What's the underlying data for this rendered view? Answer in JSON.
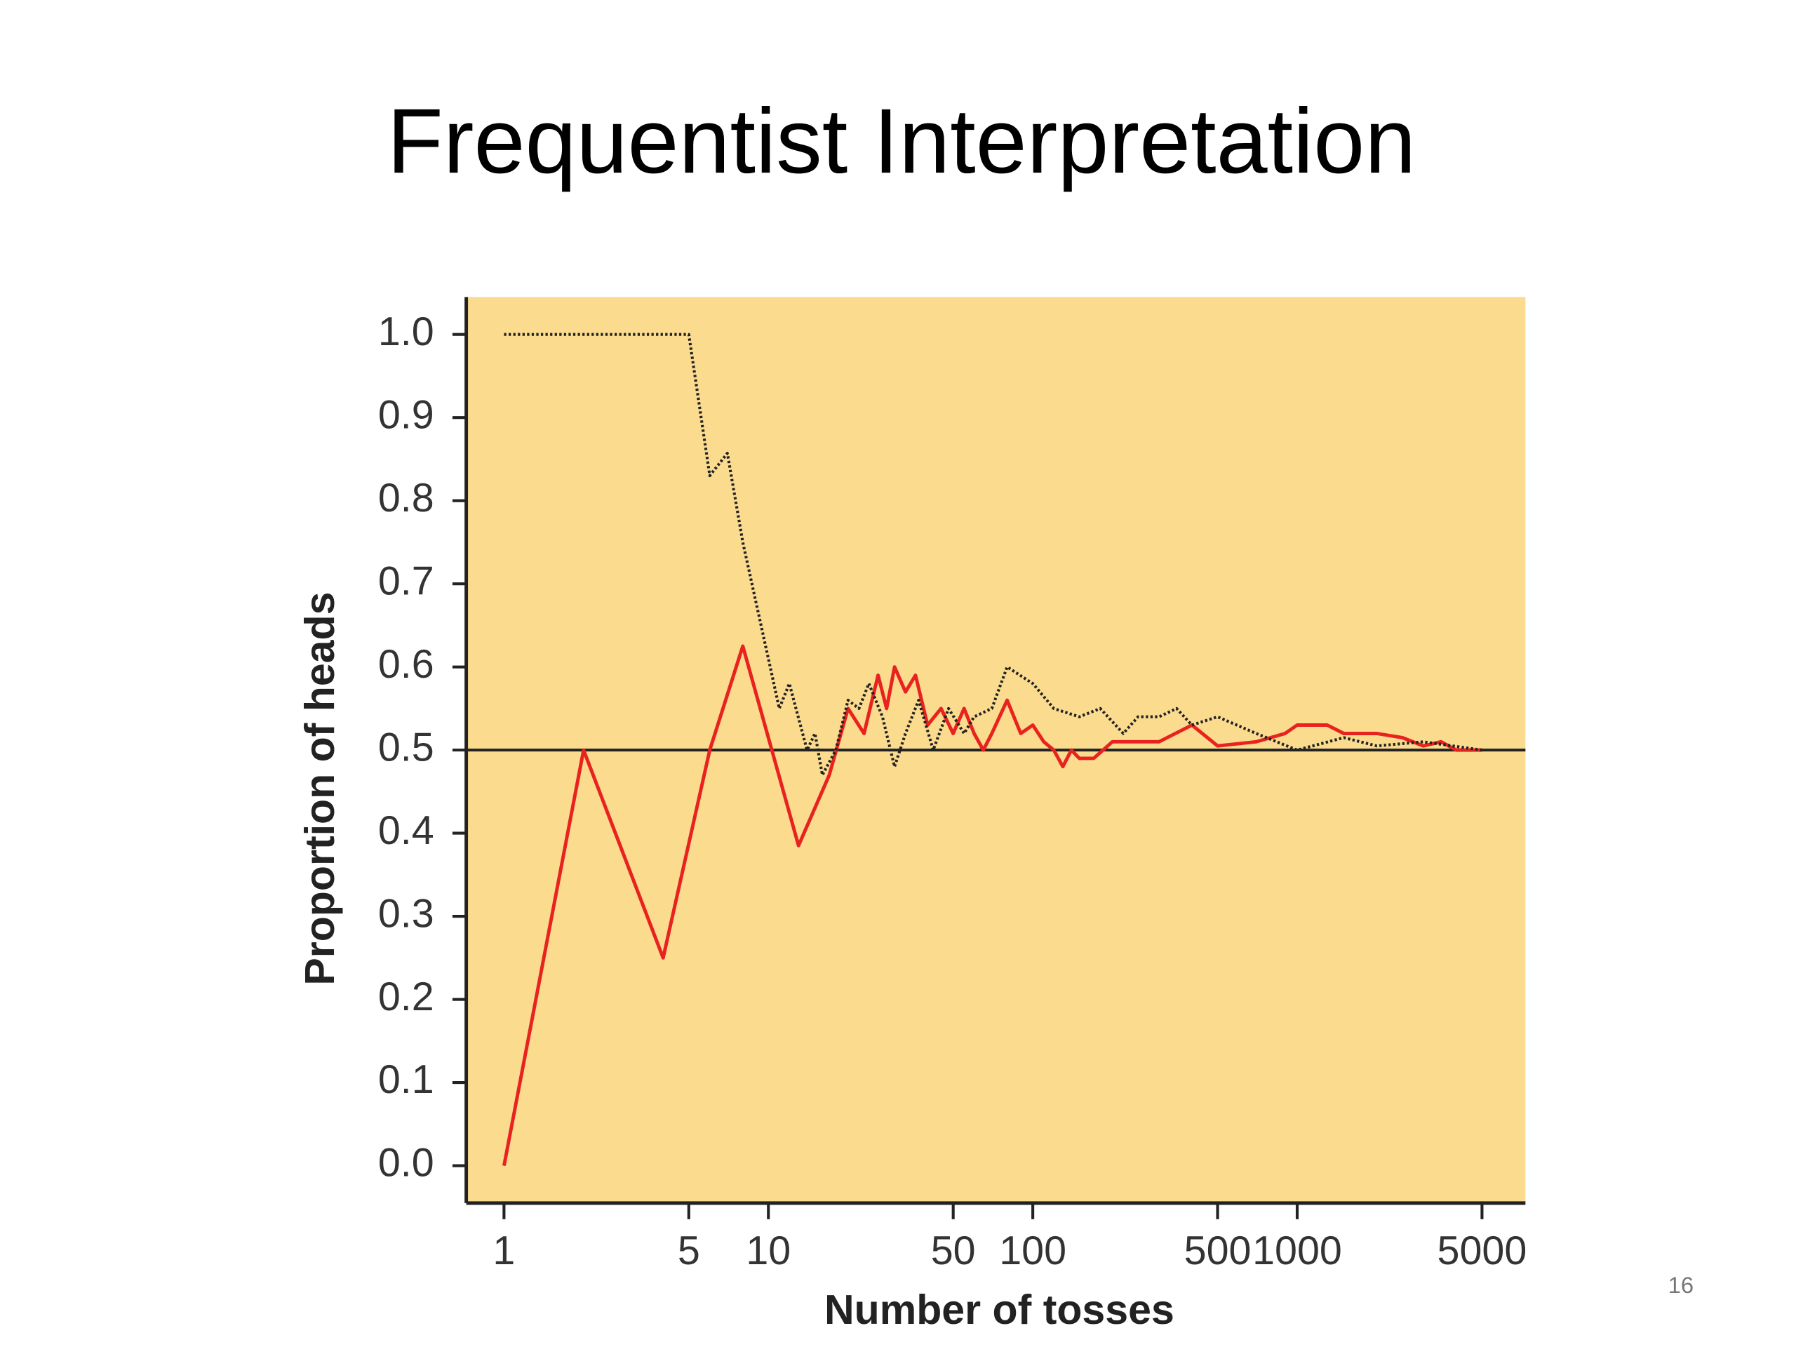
{
  "chart_data": {
    "type": "line",
    "title": "Frequentist Interpretation",
    "xlabel": "Number of tosses",
    "ylabel": "Proportion of  heads",
    "xscale": "log",
    "xlim": [
      0.72,
      7300
    ],
    "ylim": [
      -0.045,
      1.045
    ],
    "xticks": [
      1,
      5,
      10,
      50,
      100,
      500,
      1000,
      5000
    ],
    "yticks": [
      {
        "value": 0,
        "label": "0.0"
      },
      0.1,
      0.2,
      0.3,
      0.4,
      0.5,
      0.6,
      0.7,
      0.8,
      0.9,
      {
        "value": 1,
        "label": "1.0"
      }
    ],
    "hline": 0.5,
    "background": "#fbdb8e",
    "series": [
      {
        "color": "#e8231f",
        "style": "solid",
        "x": [
          1,
          2,
          4,
          6,
          8,
          13,
          17,
          20,
          23,
          26,
          28,
          30,
          33,
          36,
          40,
          45,
          50,
          55,
          60,
          65,
          70,
          80,
          90,
          100,
          110,
          120,
          130,
          140,
          150,
          170,
          200,
          300,
          400,
          500,
          700,
          900,
          1000,
          1300,
          1500,
          2000,
          2500,
          3000,
          3500,
          4000,
          5000
        ],
        "values": [
          0,
          0.5,
          0.25,
          0.5,
          0.625,
          0.385,
          0.47,
          0.55,
          0.52,
          0.59,
          0.55,
          0.6,
          0.57,
          0.59,
          0.53,
          0.55,
          0.52,
          0.55,
          0.52,
          0.5,
          0.52,
          0.56,
          0.52,
          0.53,
          0.51,
          0.5,
          0.48,
          0.5,
          0.49,
          0.49,
          0.51,
          0.51,
          0.53,
          0.505,
          0.51,
          0.52,
          0.53,
          0.53,
          0.52,
          0.52,
          0.515,
          0.505,
          0.51,
          0.5,
          0.5
        ]
      },
      {
        "color": "#222222",
        "style": "dotted",
        "x": [
          1,
          5,
          6,
          7,
          8,
          11,
          12,
          14,
          15,
          16,
          18,
          20,
          22,
          24,
          27,
          30,
          33,
          37,
          42,
          48,
          55,
          60,
          70,
          80,
          100,
          120,
          150,
          180,
          220,
          250,
          300,
          350,
          400,
          500,
          700,
          1000,
          1500,
          2000,
          3000,
          5000
        ],
        "values": [
          1,
          1,
          0.83,
          0.857,
          0.75,
          0.55,
          0.58,
          0.5,
          0.52,
          0.47,
          0.5,
          0.56,
          0.55,
          0.58,
          0.54,
          0.48,
          0.52,
          0.56,
          0.5,
          0.55,
          0.52,
          0.54,
          0.55,
          0.6,
          0.58,
          0.55,
          0.54,
          0.55,
          0.52,
          0.54,
          0.54,
          0.55,
          0.53,
          0.54,
          0.52,
          0.5,
          0.515,
          0.505,
          0.51,
          0.5
        ]
      }
    ]
  },
  "page_number": "16"
}
